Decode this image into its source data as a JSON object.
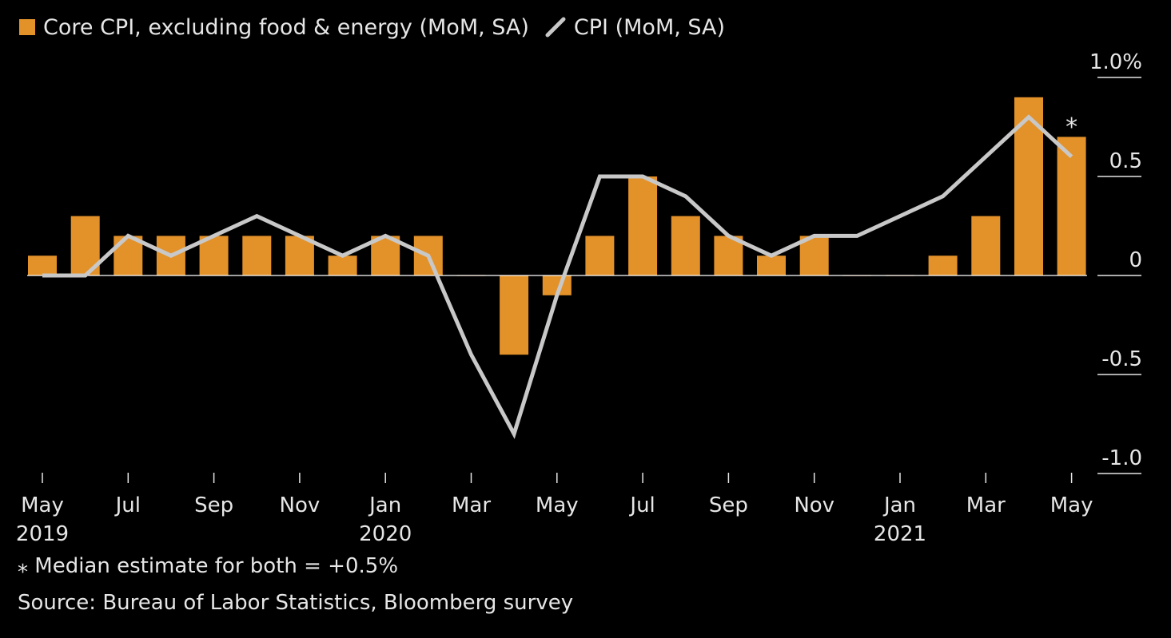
{
  "legend": {
    "bar_label": "Core CPI, excluding food & energy (MoM, SA)",
    "line_label": "CPI (MoM, SA)"
  },
  "colors": {
    "bar": "#E39129",
    "line": "#C8C8C8",
    "background": "#000000",
    "text": "#E6E6E6"
  },
  "footnote": "⁎ Median estimate for both = +0.5%",
  "source": "Source: Bureau of Labor Statistics, Bloomberg survey",
  "chart_data": {
    "type": "bar",
    "categories": [
      "2019-05",
      "2019-06",
      "2019-07",
      "2019-08",
      "2019-09",
      "2019-10",
      "2019-11",
      "2019-12",
      "2020-01",
      "2020-02",
      "2020-03",
      "2020-04",
      "2020-05",
      "2020-06",
      "2020-07",
      "2020-08",
      "2020-09",
      "2020-10",
      "2020-11",
      "2020-12",
      "2021-01",
      "2021-02",
      "2021-03",
      "2021-04",
      "2021-05"
    ],
    "series": [
      {
        "name": "Core CPI, excluding food & energy (MoM, SA)",
        "type": "bar",
        "values": [
          0.1,
          0.3,
          0.2,
          0.2,
          0.2,
          0.2,
          0.2,
          0.1,
          0.2,
          0.2,
          0.0,
          -0.4,
          -0.1,
          0.2,
          0.5,
          0.3,
          0.2,
          0.1,
          0.2,
          0.0,
          0.0,
          0.1,
          0.3,
          0.9,
          0.7
        ]
      },
      {
        "name": "CPI (MoM, SA)",
        "type": "line",
        "values": [
          0.0,
          0.0,
          0.2,
          0.1,
          0.2,
          0.3,
          0.2,
          0.1,
          0.2,
          0.1,
          -0.4,
          -0.8,
          -0.1,
          0.5,
          0.5,
          0.4,
          0.2,
          0.1,
          0.2,
          0.2,
          0.3,
          0.4,
          0.6,
          0.8,
          0.6
        ]
      }
    ],
    "ylim": [
      -1.0,
      1.0
    ],
    "yticks": [
      {
        "value": 1.0,
        "label": "1.0%"
      },
      {
        "value": 0.5,
        "label": "0.5"
      },
      {
        "value": 0,
        "label": "0"
      },
      {
        "value": -0.5,
        "label": "-0.5"
      },
      {
        "value": -1.0,
        "label": "-1.0"
      }
    ],
    "xticks": [
      {
        "index": 0,
        "label": "May",
        "year": "2019"
      },
      {
        "index": 2,
        "label": "Jul",
        "year": ""
      },
      {
        "index": 4,
        "label": "Sep",
        "year": ""
      },
      {
        "index": 6,
        "label": "Nov",
        "year": ""
      },
      {
        "index": 8,
        "label": "Jan",
        "year": "2020"
      },
      {
        "index": 10,
        "label": "Mar",
        "year": ""
      },
      {
        "index": 12,
        "label": "May",
        "year": ""
      },
      {
        "index": 14,
        "label": "Jul",
        "year": ""
      },
      {
        "index": 16,
        "label": "Sep",
        "year": ""
      },
      {
        "index": 18,
        "label": "Nov",
        "year": ""
      },
      {
        "index": 20,
        "label": "Jan",
        "year": "2021"
      },
      {
        "index": 22,
        "label": "Mar",
        "year": ""
      },
      {
        "index": 24,
        "label": "May",
        "year": ""
      }
    ],
    "annotations": [
      {
        "index": 24,
        "text": "⁎"
      }
    ],
    "grid": false,
    "legend_position": "top-left"
  }
}
